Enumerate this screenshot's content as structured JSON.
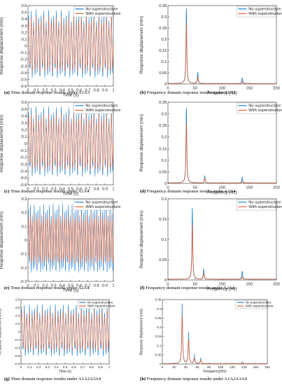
{
  "colors": {
    "no_superstructure": "#1f7fd4",
    "with_superstructure": "#e0663a",
    "axis": "#333333",
    "peak_overlay": "#555555"
  },
  "chart_data": [
    {
      "id": "a",
      "type": "line",
      "domain": "time",
      "caption_letter": "(a)",
      "caption_text": "Time domain response results under A1A3",
      "xlabel": "Time (s)",
      "ylabel": "Response displacement (mm)",
      "xlim": [
        0,
        1
      ],
      "ylim": [
        -0.6,
        0.6
      ],
      "xticks": [
        "0",
        "0.1",
        "0.2",
        "0.3",
        "0.4",
        "0.5",
        "0.6",
        "0.7",
        "0.8",
        "0.9",
        "1"
      ],
      "yticks": [
        "-0.6",
        "-0.5",
        "-0.4",
        "-0.3",
        "-0.2",
        "-0.1",
        "0",
        "0.1",
        "0.2",
        "0.3",
        "0.4",
        "0.5",
        "0.6"
      ],
      "legend": [
        "No superstructure",
        "With superstructure"
      ],
      "legend_position": "top-right",
      "series": [
        {
          "name": "No superstructure",
          "amplitude_range": [
            -0.55,
            0.55
          ],
          "dominant_frequency_hz": 34
        },
        {
          "name": "With superstructure",
          "amplitude_range": [
            -0.45,
            0.45
          ],
          "dominant_frequency_hz": 34
        }
      ]
    },
    {
      "id": "b",
      "type": "line",
      "domain": "frequency",
      "caption_letter": "(b)",
      "caption_text": "Frequency domain response results under A1A3",
      "xlabel": "Frequency (Hz)",
      "ylabel": "Response displacement (mm)",
      "xlim": [
        0,
        200
      ],
      "ylim": [
        0,
        0.35
      ],
      "xticks": [
        "0",
        "50",
        "100",
        "150",
        "200"
      ],
      "yticks": [
        "0",
        "0.05",
        "0.1",
        "0.15",
        "0.2",
        "0.25",
        "0.3",
        "0.35"
      ],
      "legend": [
        "No superstructure",
        "With superstructure"
      ],
      "legend_position": "top-right",
      "series": [
        {
          "name": "No superstructure",
          "peaks": [
            [
              34,
              0.335
            ],
            [
              55,
              0.05
            ],
            [
              137,
              0.025
            ]
          ]
        },
        {
          "name": "With superstructure",
          "peaks": [
            [
              34,
              0.27
            ],
            [
              55,
              0.03
            ],
            [
              137,
              0.01
            ]
          ]
        }
      ]
    },
    {
      "id": "c",
      "type": "line",
      "domain": "time",
      "caption_letter": "(c)",
      "caption_text": "Time domain response results under A1A4",
      "xlabel": "Time (s)",
      "ylabel": "Response displacement (mm)",
      "xlim": [
        0,
        1
      ],
      "ylim": [
        -0.6,
        0.6
      ],
      "xticks": [
        "0",
        "0.1",
        "0.2",
        "0.3",
        "0.4",
        "0.5",
        "0.6",
        "0.7",
        "0.8",
        "0.9",
        "1"
      ],
      "yticks": [
        "-0.6",
        "-0.5",
        "-0.4",
        "-0.3",
        "-0.2",
        "-0.1",
        "0",
        "0.1",
        "0.2",
        "0.3",
        "0.4",
        "0.5",
        "0.6"
      ],
      "legend": [
        "No superstructure",
        "With superstructure"
      ],
      "legend_position": "top-right",
      "series": [
        {
          "name": "No superstructure",
          "amplitude_range": [
            -0.55,
            0.55
          ],
          "dominant_frequency_hz": 34
        },
        {
          "name": "With superstructure",
          "amplitude_range": [
            -0.45,
            0.45
          ],
          "dominant_frequency_hz": 34
        }
      ]
    },
    {
      "id": "d",
      "type": "line",
      "domain": "frequency",
      "caption_letter": "(d)",
      "caption_text": "Frequency domain response results under A1A4",
      "xlabel": "Frequency (Hz)",
      "ylabel": "Response displacement (mm)",
      "xlim": [
        0,
        200
      ],
      "ylim": [
        0,
        0.35
      ],
      "xticks": [
        "0",
        "50",
        "100",
        "150",
        "200"
      ],
      "yticks": [
        "0",
        "0.05",
        "0.1",
        "0.15",
        "0.2",
        "0.25",
        "0.3",
        "0.35"
      ],
      "legend": [
        "No superstructure",
        "With superstructure"
      ],
      "legend_position": "top-right",
      "series": [
        {
          "name": "No superstructure",
          "peaks": [
            [
              34,
              0.325
            ],
            [
              68,
              0.03
            ],
            [
              137,
              0.025
            ]
          ]
        },
        {
          "name": "With superstructure",
          "peaks": [
            [
              34,
              0.26
            ],
            [
              68,
              0.02
            ],
            [
              137,
              0.008
            ]
          ]
        }
      ]
    },
    {
      "id": "e",
      "type": "line",
      "domain": "time",
      "caption_letter": "(e)",
      "caption_text": "Time domain response results under A2A4",
      "xlabel": "Time (s)",
      "ylabel": "Response displacement (mm)",
      "xlim": [
        0,
        1
      ],
      "ylim": [
        -0.3,
        0.3
      ],
      "xticks": [
        "0",
        "0.1",
        "0.2",
        "0.3",
        "0.4",
        "0.5",
        "0.6",
        "0.7",
        "0.8",
        "0.9",
        "1"
      ],
      "yticks": [
        "-0.3",
        "-0.2",
        "-0.1",
        "0",
        "0.1",
        "0.2",
        "0.3"
      ],
      "legend": [
        "No superstructure",
        "With superstructure"
      ],
      "legend_position": "top-right",
      "series": [
        {
          "name": "No superstructure",
          "amplitude_range": [
            -0.26,
            0.27
          ],
          "dominant_frequency_hz": 45
        },
        {
          "name": "With superstructure",
          "amplitude_range": [
            -0.2,
            0.2
          ],
          "dominant_frequency_hz": 45
        }
      ]
    },
    {
      "id": "f",
      "type": "line",
      "domain": "frequency",
      "caption_letter": "(f)",
      "caption_text": "Frequency domain response results under A2A4",
      "xlabel": "Frequency (Hz)",
      "ylabel": "Response displacement (mm)",
      "xlim": [
        0,
        200
      ],
      "ylim": [
        0,
        0.2
      ],
      "xticks": [
        "0",
        "50",
        "100",
        "150",
        "200"
      ],
      "yticks": [
        "0",
        "0.05",
        "0.1",
        "0.15",
        "0.2"
      ],
      "legend": [
        "No superstructure",
        "With superstructure"
      ],
      "legend_position": "top-right",
      "series": [
        {
          "name": "No superstructure",
          "peaks": [
            [
              45,
              0.175
            ],
            [
              66,
              0.025
            ],
            [
              137,
              0.02
            ]
          ]
        },
        {
          "name": "With superstructure",
          "peaks": [
            [
              45,
              0.135
            ],
            [
              66,
              0.015
            ],
            [
              137,
              0.006
            ]
          ]
        }
      ]
    },
    {
      "id": "g",
      "type": "line",
      "domain": "time",
      "caption_letter": "(g)",
      "caption_text": "Time domain response results under A1A2A3A4",
      "xlabel": "Time (s)",
      "ylabel": "Response displacement (mm)",
      "xlim": [
        0,
        1
      ],
      "ylim": [
        -0.8,
        0.8
      ],
      "xticks": [
        "0",
        "0.1",
        "0.2",
        "0.3",
        "0.4",
        "0.5",
        "0.6",
        "0.7",
        "0.8",
        "0.9",
        "1"
      ],
      "yticks": [
        "-0.8",
        "-0.6",
        "-0.4",
        "-0.2",
        "0",
        "0.2",
        "0.4",
        "0.6",
        "0.8"
      ],
      "legend": [
        "No superstructure",
        "With superstructure"
      ],
      "legend_position": "top-right",
      "series": [
        {
          "name": "No superstructure",
          "amplitude_range": [
            -0.7,
            0.7
          ],
          "dominant_frequency_hz": 34
        },
        {
          "name": "With superstructure",
          "amplitude_range": [
            -0.55,
            0.55
          ],
          "dominant_frequency_hz": 34
        }
      ]
    },
    {
      "id": "h",
      "type": "line",
      "domain": "frequency",
      "caption_letter": "(h)",
      "caption_text": "Frequency domain response results under A1A2A3A4",
      "xlabel": "Frequency(Hz)",
      "ylabel": "Response displacement (mm)",
      "xlim": [
        0,
        180
      ],
      "ylim": [
        0,
        0.35
      ],
      "xticks": [
        "0",
        "20",
        "40",
        "60",
        "80",
        "100",
        "120",
        "140",
        "160",
        "180"
      ],
      "yticks": [
        "0",
        "0.05",
        "0.1",
        "0.15",
        "0.2",
        "0.25",
        "0.3",
        "0.35"
      ],
      "legend": [
        "No superstructure",
        "With  superstructure"
      ],
      "legend_position": "top-right",
      "series": [
        {
          "name": "No superstructure",
          "peaks": [
            [
              34,
              0.325
            ],
            [
              45,
              0.17
            ],
            [
              55,
              0.05
            ],
            [
              66,
              0.03
            ],
            [
              137,
              0.01
            ]
          ]
        },
        {
          "name": "With  superstructure",
          "peaks": [
            [
              34,
              0.26
            ],
            [
              45,
              0.13
            ],
            [
              55,
              0.03
            ],
            [
              66,
              0.02
            ],
            [
              137,
              0.005
            ]
          ]
        }
      ]
    }
  ]
}
